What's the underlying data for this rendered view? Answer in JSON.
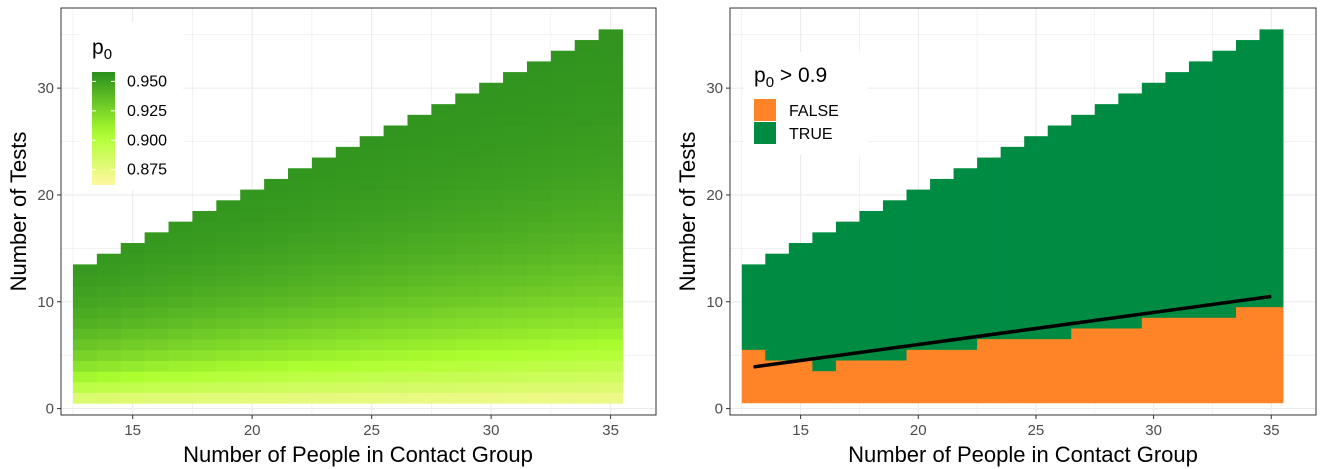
{
  "chart_data": [
    {
      "type": "heatmap",
      "title": "",
      "xlabel": "Number of People in Contact Group",
      "ylabel": "Number of Tests",
      "x_ticks": [
        15,
        20,
        25,
        30,
        35
      ],
      "y_ticks": [
        0,
        10,
        20,
        30
      ],
      "xlim": [
        12.0,
        36.9
      ],
      "ylim": [
        -0.6,
        37.5
      ],
      "x_range": [
        13,
        35
      ],
      "tests_max_rule": "tests 1 .. n for each contact group size n (cells span y-0.5 .. y+0.5)",
      "legend": {
        "title_main": "p",
        "title_sub": "0",
        "position": "top-left",
        "breaks": [
          "0.950",
          "0.925",
          "0.900",
          "0.875"
        ],
        "break_values": [
          0.95,
          0.925,
          0.9,
          0.875
        ],
        "range": [
          0.862,
          0.958
        ]
      },
      "colors": {
        "low": "#fff7a0",
        "mid": "#adff2f",
        "high": "#2a8f1e"
      },
      "grid": true
    },
    {
      "type": "heatmap",
      "title": "",
      "xlabel": "Number of People in Contact Group",
      "ylabel": "Number of Tests",
      "x_ticks": [
        15,
        20,
        25,
        30,
        35
      ],
      "y_ticks": [
        0,
        10,
        20,
        30
      ],
      "xlim": [
        12.0,
        36.9
      ],
      "ylim": [
        -0.6,
        37.5
      ],
      "legend": {
        "title_main": "p",
        "title_sub": "0",
        "title_suffix": " > 0.9",
        "position": "top-left",
        "entries": [
          {
            "label": "FALSE",
            "color": "#ff8427"
          },
          {
            "label": "TRUE",
            "color": "#008b43"
          }
        ]
      },
      "threshold_columns": [
        {
          "x": 13,
          "false_max": 5
        },
        {
          "x": 14,
          "false_max": 4
        },
        {
          "x": 15,
          "false_max": 4
        },
        {
          "x": 16,
          "false_max": 3
        },
        {
          "x": 17,
          "false_max": 4
        },
        {
          "x": 18,
          "false_max": 4
        },
        {
          "x": 19,
          "false_max": 4
        },
        {
          "x": 20,
          "false_max": 5
        },
        {
          "x": 21,
          "false_max": 5
        },
        {
          "x": 22,
          "false_max": 5
        },
        {
          "x": 23,
          "false_max": 6
        },
        {
          "x": 24,
          "false_max": 6
        },
        {
          "x": 25,
          "false_max": 6
        },
        {
          "x": 26,
          "false_max": 6
        },
        {
          "x": 27,
          "false_max": 7
        },
        {
          "x": 28,
          "false_max": 7
        },
        {
          "x": 29,
          "false_max": 7
        },
        {
          "x": 30,
          "false_max": 8
        },
        {
          "x": 31,
          "false_max": 8
        },
        {
          "x": 32,
          "false_max": 8
        },
        {
          "x": 33,
          "false_max": 8
        },
        {
          "x": 34,
          "false_max": 9
        },
        {
          "x": 35,
          "false_max": 9
        }
      ],
      "fit_line": {
        "x": [
          13,
          35
        ],
        "y": [
          3.9,
          10.5
        ],
        "color": "#000000"
      },
      "grid": true
    }
  ]
}
